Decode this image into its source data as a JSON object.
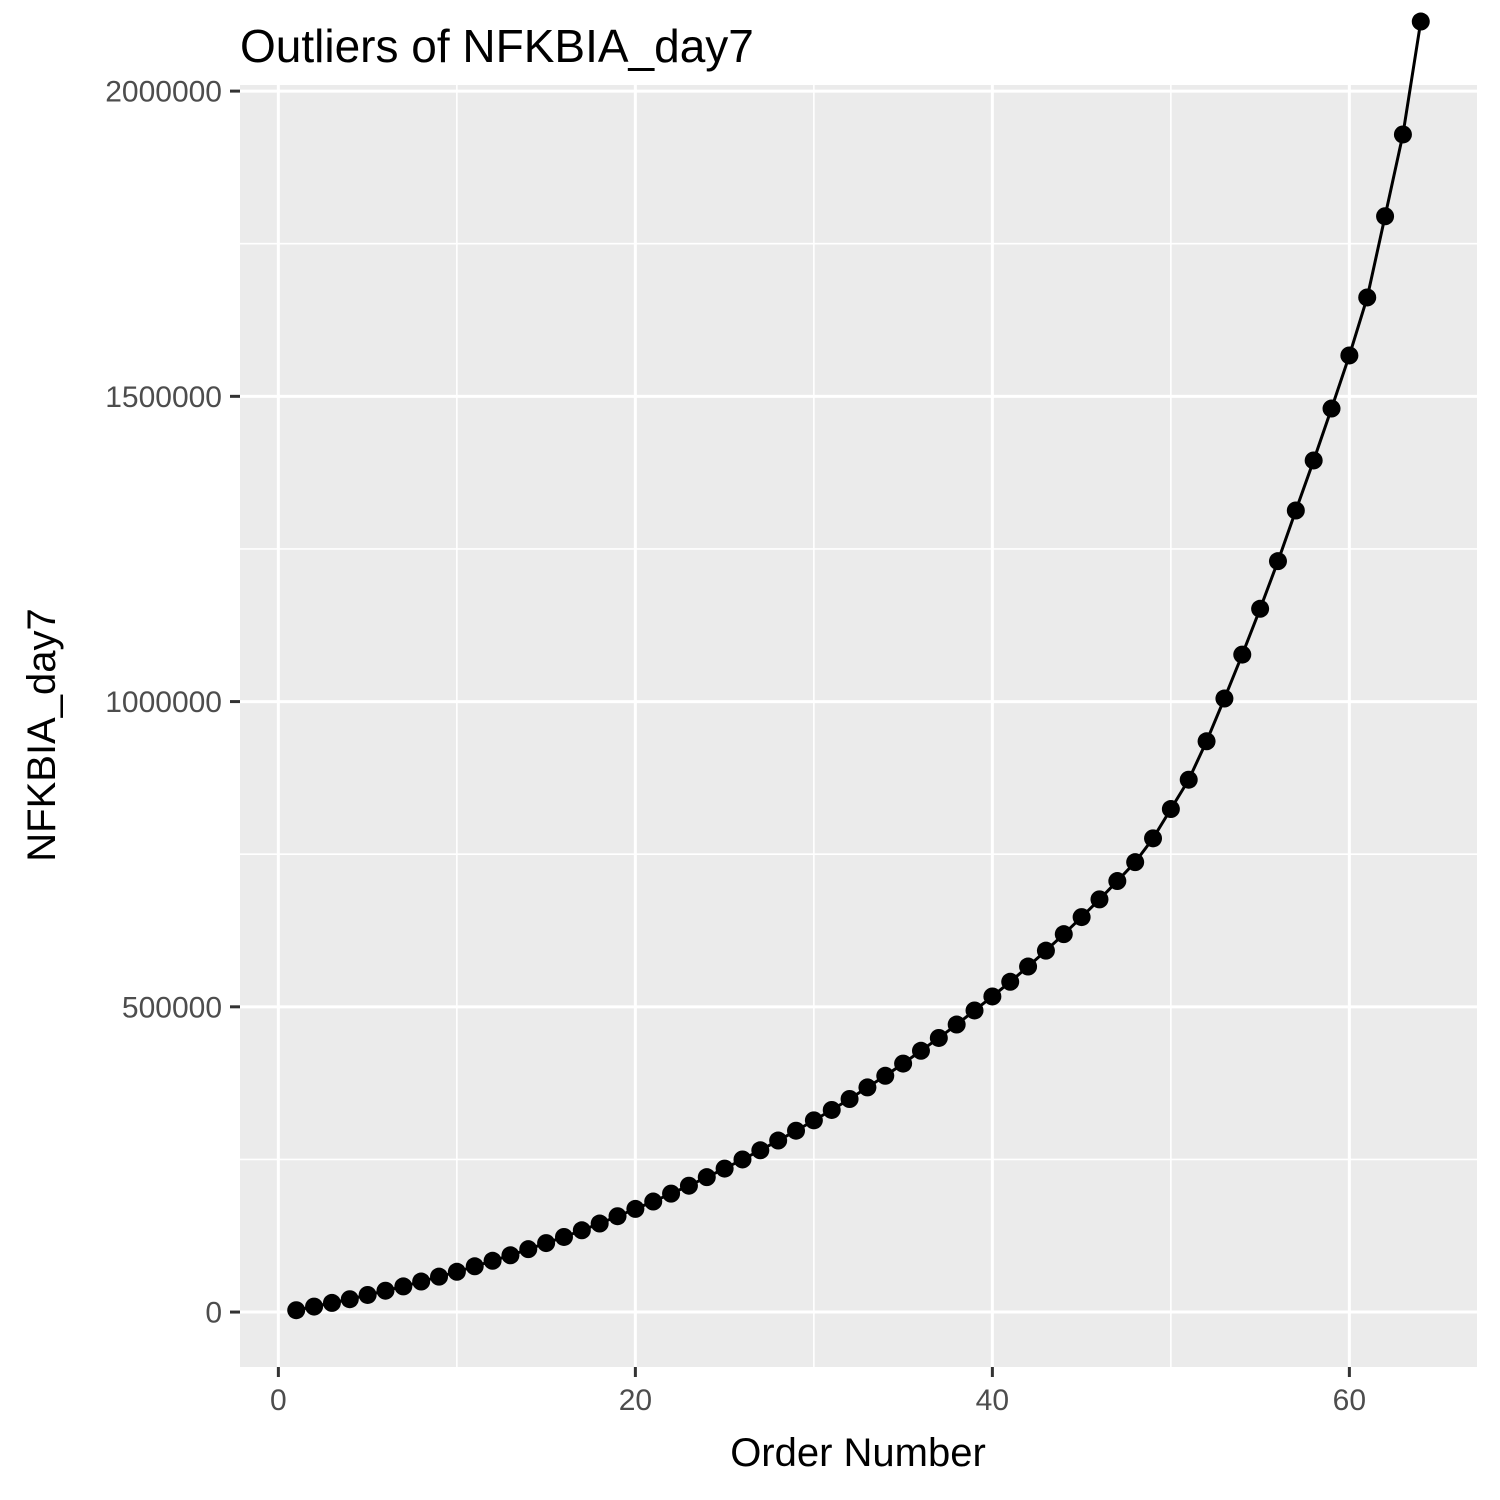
{
  "chart_data": {
    "type": "line",
    "title": "Outliers of NFKBIA_day7",
    "xlabel": "Order Number",
    "ylabel": "NFKBIA_day7",
    "xlim": [
      -2.15,
      67.15
    ],
    "ylim": [
      -90000,
      2010000
    ],
    "x_ticks": [
      0,
      20,
      40,
      60
    ],
    "x_tick_labels": [
      "0",
      "20",
      "40",
      "60"
    ],
    "x_minor_ticks": [
      10,
      30,
      50
    ],
    "y_ticks": [
      0,
      500000,
      1000000,
      1500000,
      2000000
    ],
    "y_tick_labels": [
      "0",
      "500000",
      "1000000",
      "1500000",
      "2000000"
    ],
    "y_minor_ticks": [
      250000,
      750000,
      1250000,
      1750000
    ],
    "grid": true,
    "markers": true,
    "colors": {
      "panel": "#EBEBEB",
      "grid": "#FFFFFF",
      "line": "#000000",
      "tick_text": "#4D4D4D"
    },
    "series": [
      {
        "x": [
          1,
          2,
          3,
          4,
          5,
          6,
          7,
          8,
          9,
          10,
          11,
          12,
          13,
          14,
          15,
          16,
          17,
          18,
          19,
          20,
          21,
          22,
          23,
          24,
          25,
          26,
          27,
          28,
          29,
          30,
          31,
          32,
          33,
          34,
          35,
          36,
          37,
          38,
          39,
          40,
          41,
          42,
          43,
          44,
          45,
          46,
          47,
          48,
          49,
          50,
          51,
          52,
          53,
          54,
          55,
          56,
          57,
          58,
          59,
          60,
          61,
          62,
          63,
          64
        ],
        "values": [
          3000,
          9000,
          15000,
          21000,
          28000,
          35000,
          42000,
          50000,
          58000,
          66000,
          75000,
          84000,
          93000,
          103000,
          113000,
          123000,
          134000,
          145000,
          157000,
          169000,
          181000,
          194000,
          207000,
          221000,
          235000,
          250000,
          265000,
          281000,
          297000,
          314000,
          331000,
          349000,
          368000,
          387000,
          407000,
          428000,
          449000,
          471000,
          494000,
          517000,
          541000,
          566000,
          592000,
          619000,
          647000,
          676000,
          706000,
          737000,
          776000,
          824000,
          872000,
          935000,
          1005000,
          1077000,
          1152000,
          1230000,
          1313000,
          1395000,
          1480000,
          1567000,
          1662000,
          1795000,
          1929000,
          2114000
        ]
      }
    ]
  }
}
